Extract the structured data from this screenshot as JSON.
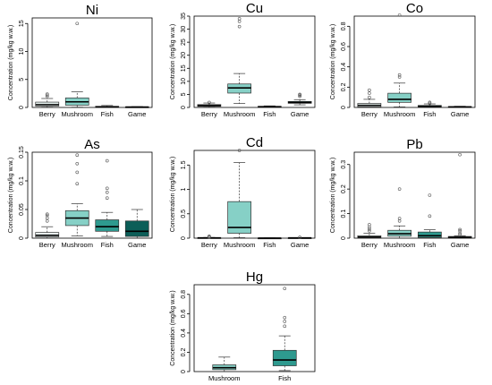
{
  "figure": {
    "ylabel_all": "Concentration (mg/kg w.w.)"
  },
  "colors": {
    "Berry": "#e9f5f3",
    "Mushroom": "#86d0c6",
    "Fish": "#2e9a8f",
    "Game": "#0c5e58",
    "stroke": "#333333"
  },
  "chart_data": [
    {
      "type": "box",
      "title": "Ni",
      "categories": [
        "Berry",
        "Mushroom",
        "Fish",
        "Game"
      ],
      "ylabel": "Concentration (mg/kg w.w.)",
      "ylim": [
        0,
        16
      ],
      "yticks": [
        0,
        5,
        10,
        15
      ],
      "boxes": [
        {
          "category": "Berry",
          "q1": 0.25,
          "median": 0.5,
          "q3": 0.95,
          "whisker_low": 0.05,
          "whisker_high": 1.6,
          "outliers": [
            2.0,
            2.2,
            2.4
          ]
        },
        {
          "category": "Mushroom",
          "q1": 0.4,
          "median": 1.0,
          "q3": 1.7,
          "whisker_low": 0.05,
          "whisker_high": 2.8,
          "outliers": [
            15.0
          ]
        },
        {
          "category": "Fish",
          "q1": 0.05,
          "median": 0.1,
          "q3": 0.2,
          "whisker_low": 0.0,
          "whisker_high": 0.35,
          "outliers": []
        },
        {
          "category": "Game",
          "q1": 0.03,
          "median": 0.07,
          "q3": 0.1,
          "whisker_low": 0.0,
          "whisker_high": 0.15,
          "outliers": []
        }
      ]
    },
    {
      "type": "box",
      "title": "Cu",
      "categories": [
        "Berry",
        "Mushroom",
        "Fish",
        "Game"
      ],
      "ylabel": "Concentration (mg/kg w.w.)",
      "ylim": [
        0,
        35
      ],
      "yticks": [
        0,
        5,
        10,
        15,
        20,
        25,
        30,
        35
      ],
      "boxes": [
        {
          "category": "Berry",
          "q1": 0.4,
          "median": 0.7,
          "q3": 1.1,
          "whisker_low": 0.1,
          "whisker_high": 1.7,
          "outliers": [
            1.9
          ]
        },
        {
          "category": "Mushroom",
          "q1": 5.5,
          "median": 7.5,
          "q3": 9.0,
          "whisker_low": 1.5,
          "whisker_high": 13.0,
          "outliers": [
            31.0,
            33.0,
            34.0
          ]
        },
        {
          "category": "Fish",
          "q1": 0.2,
          "median": 0.3,
          "q3": 0.4,
          "whisker_low": 0.1,
          "whisker_high": 0.6,
          "outliers": []
        },
        {
          "category": "Game",
          "q1": 1.6,
          "median": 1.9,
          "q3": 2.3,
          "whisker_low": 1.0,
          "whisker_high": 3.0,
          "outliers": [
            4.3,
            4.7,
            5.0
          ]
        }
      ]
    },
    {
      "type": "box",
      "title": "Co",
      "categories": [
        "Berry",
        "Mushroom",
        "Fish",
        "Game"
      ],
      "ylabel": "Concentration (mg/kg w.w.)",
      "ylim": [
        0,
        0.9
      ],
      "yticks": [
        0.0,
        0.2,
        0.4,
        0.6,
        0.8
      ],
      "boxes": [
        {
          "category": "Berry",
          "q1": 0.005,
          "median": 0.02,
          "q3": 0.04,
          "whisker_low": 0.0,
          "whisker_high": 0.08,
          "outliers": [
            0.1,
            0.14,
            0.17
          ]
        },
        {
          "category": "Mushroom",
          "q1": 0.05,
          "median": 0.08,
          "q3": 0.14,
          "whisker_low": 0.005,
          "whisker_high": 0.24,
          "outliers": [
            0.3,
            0.32,
            0.91
          ]
        },
        {
          "category": "Fish",
          "q1": 0.005,
          "median": 0.01,
          "q3": 0.02,
          "whisker_low": 0.0,
          "whisker_high": 0.035,
          "outliers": [
            0.04,
            0.05
          ]
        },
        {
          "category": "Game",
          "q1": 0.003,
          "median": 0.005,
          "q3": 0.008,
          "whisker_low": 0.0,
          "whisker_high": 0.012,
          "outliers": []
        }
      ]
    },
    {
      "type": "box",
      "title": "As",
      "categories": [
        "Berry",
        "Mushroom",
        "Fish",
        "Game"
      ],
      "ylabel": "Concentration (mg/kg w.w.)",
      "ylim": [
        0,
        0.15
      ],
      "yticks": [
        0.0,
        0.05,
        0.1,
        0.15
      ],
      "boxes": [
        {
          "category": "Berry",
          "q1": 0.002,
          "median": 0.005,
          "q3": 0.01,
          "whisker_low": 0.0,
          "whisker_high": 0.02,
          "outliers": [
            0.03,
            0.035,
            0.04,
            0.042
          ]
        },
        {
          "category": "Mushroom",
          "q1": 0.022,
          "median": 0.035,
          "q3": 0.048,
          "whisker_low": 0.004,
          "whisker_high": 0.06,
          "outliers": [
            0.095,
            0.115,
            0.13,
            0.145
          ]
        },
        {
          "category": "Fish",
          "q1": 0.012,
          "median": 0.02,
          "q3": 0.032,
          "whisker_low": 0.003,
          "whisker_high": 0.045,
          "outliers": [
            0.07,
            0.08,
            0.087,
            0.135
          ]
        },
        {
          "category": "Game",
          "q1": 0.003,
          "median": 0.012,
          "q3": 0.03,
          "whisker_low": 0.0,
          "whisker_high": 0.05,
          "outliers": []
        }
      ]
    },
    {
      "type": "box",
      "title": "Cd",
      "categories": [
        "Berry",
        "Mushroom",
        "Fish",
        "Game"
      ],
      "ylabel": "Concentration (mg/kg w.w.)",
      "ylim": [
        0,
        1.8
      ],
      "yticks": [
        0.0,
        0.5,
        1.0,
        1.5
      ],
      "boxes": [
        {
          "category": "Berry",
          "q1": 0.002,
          "median": 0.005,
          "q3": 0.01,
          "whisker_low": 0.0,
          "whisker_high": 0.015,
          "outliers": [
            0.02,
            0.03,
            0.04
          ]
        },
        {
          "category": "Mushroom",
          "q1": 0.1,
          "median": 0.22,
          "q3": 0.75,
          "whisker_low": 0.01,
          "whisker_high": 1.55,
          "outliers": [
            1.8
          ]
        },
        {
          "category": "Fish",
          "q1": 0.001,
          "median": 0.002,
          "q3": 0.004,
          "whisker_low": 0.0,
          "whisker_high": 0.006,
          "outliers": []
        },
        {
          "category": "Game",
          "q1": 0.003,
          "median": 0.005,
          "q3": 0.008,
          "whisker_low": 0.001,
          "whisker_high": 0.012,
          "outliers": [
            0.018
          ]
        }
      ]
    },
    {
      "type": "box",
      "title": "Pb",
      "categories": [
        "Berry",
        "Mushroom",
        "Fish",
        "Game"
      ],
      "ylabel": "Concentration (mg/kg w.w.)",
      "ylim": [
        0,
        0.35
      ],
      "yticks": [
        0.0,
        0.1,
        0.2,
        0.3
      ],
      "boxes": [
        {
          "category": "Berry",
          "q1": 0.002,
          "median": 0.005,
          "q3": 0.01,
          "whisker_low": 0.0,
          "whisker_high": 0.02,
          "outliers": [
            0.03,
            0.037,
            0.045,
            0.055
          ]
        },
        {
          "category": "Mushroom",
          "q1": 0.008,
          "median": 0.018,
          "q3": 0.032,
          "whisker_low": 0.0,
          "whisker_high": 0.05,
          "outliers": [
            0.07,
            0.08,
            0.2
          ]
        },
        {
          "category": "Fish",
          "q1": 0.003,
          "median": 0.01,
          "q3": 0.025,
          "whisker_low": 0.0,
          "whisker_high": 0.035,
          "outliers": [
            0.09,
            0.175
          ]
        },
        {
          "category": "Game",
          "q1": 0.001,
          "median": 0.003,
          "q3": 0.007,
          "whisker_low": 0.0,
          "whisker_high": 0.01,
          "outliers": [
            0.015,
            0.02,
            0.03,
            0.035,
            0.34
          ]
        }
      ]
    },
    {
      "type": "box",
      "title": "Hg",
      "categories": [
        "Mushroom",
        "Fish"
      ],
      "ylabel": "Concentration (mg/kg w.w.)",
      "ylim": [
        0,
        0.9
      ],
      "yticks": [
        0.0,
        0.2,
        0.4,
        0.6,
        0.8
      ],
      "boxes": [
        {
          "category": "Mushroom",
          "q1": 0.02,
          "median": 0.04,
          "q3": 0.07,
          "whisker_low": 0.0,
          "whisker_high": 0.15,
          "outliers": []
        },
        {
          "category": "Fish",
          "q1": 0.06,
          "median": 0.12,
          "q3": 0.22,
          "whisker_low": 0.01,
          "whisker_high": 0.37,
          "outliers": [
            0.47,
            0.52,
            0.56,
            0.86
          ]
        }
      ]
    }
  ]
}
